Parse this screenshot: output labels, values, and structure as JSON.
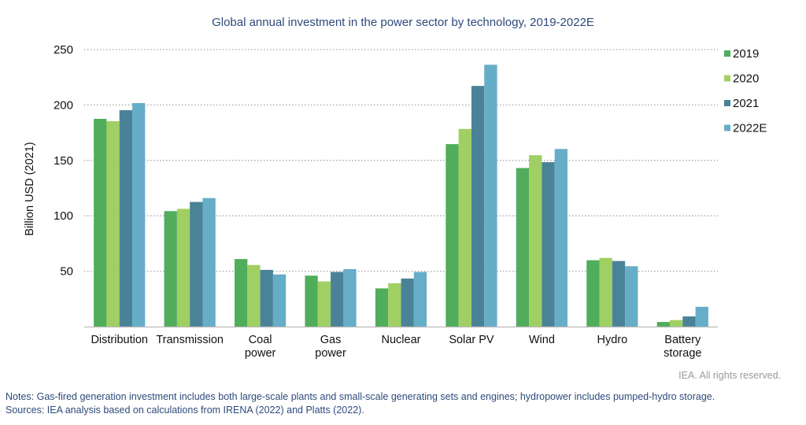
{
  "chart_data": {
    "type": "bar",
    "title": "Global annual investment in the power sector by technology, 2019-2022E",
    "xlabel": "",
    "ylabel": "Billion USD (2021)",
    "ylim": [
      0,
      250
    ],
    "yticks": [
      50,
      100,
      150,
      200,
      250
    ],
    "grid": true,
    "legend_position": "right",
    "categories": [
      [
        "Distribution"
      ],
      [
        "Transmission"
      ],
      [
        "Coal",
        "power"
      ],
      [
        "Gas",
        "power"
      ],
      [
        "Nuclear"
      ],
      [
        "Solar PV"
      ],
      [
        "Wind"
      ],
      [
        "Hydro"
      ],
      [
        "Battery",
        "storage"
      ]
    ],
    "series": [
      {
        "name": "2019",
        "color": "#4fad5b",
        "values": [
          187.5,
          104.2,
          61.0,
          46.0,
          34.5,
          164.7,
          143.1,
          59.9,
          4.2
        ]
      },
      {
        "name": "2020",
        "color": "#a0cf63",
        "values": [
          185.4,
          106.3,
          55.6,
          40.8,
          39.1,
          178.4,
          154.7,
          62.0,
          5.9
        ]
      },
      {
        "name": "2021",
        "color": "#4a8398",
        "values": [
          195.3,
          112.5,
          51.2,
          49.3,
          43.4,
          217.2,
          148.4,
          59.2,
          9.2
        ]
      },
      {
        "name": "2022E",
        "color": "#66adc7",
        "values": [
          201.7,
          116.0,
          47.1,
          51.9,
          49.3,
          236.3,
          160.3,
          54.5,
          17.9
        ]
      }
    ]
  },
  "footer": {
    "copyright": "IEA. All rights reserved.",
    "notes": "Notes: Gas-fired generation investment includes both large-scale plants and small-scale generating sets and engines; hydropower includes pumped-hydro storage.",
    "sources": "Sources: IEA analysis based on calculations from IRENA (2022) and Platts (2022)."
  }
}
